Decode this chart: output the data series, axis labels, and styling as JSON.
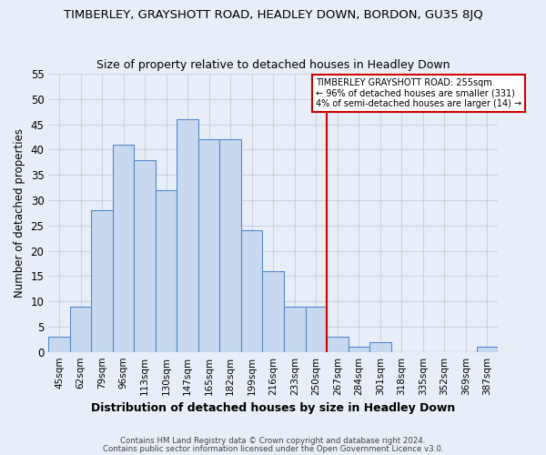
{
  "title1": "TIMBERLEY, GRAYSHOTT ROAD, HEADLEY DOWN, BORDON, GU35 8JQ",
  "title2": "Size of property relative to detached houses in Headley Down",
  "xlabel": "Distribution of detached houses by size in Headley Down",
  "ylabel": "Number of detached properties",
  "footer1": "Contains HM Land Registry data © Crown copyright and database right 2024.",
  "footer2": "Contains public sector information licensed under the Open Government Licence v3.0.",
  "bar_labels": [
    "45sqm",
    "62sqm",
    "79sqm",
    "96sqm",
    "113sqm",
    "130sqm",
    "147sqm",
    "165sqm",
    "182sqm",
    "199sqm",
    "216sqm",
    "233sqm",
    "250sqm",
    "267sqm",
    "284sqm",
    "301sqm",
    "318sqm",
    "335sqm",
    "352sqm",
    "369sqm",
    "387sqm"
  ],
  "bar_values": [
    3,
    9,
    28,
    41,
    38,
    32,
    46,
    42,
    42,
    24,
    16,
    9,
    9,
    3,
    1,
    2,
    0,
    0,
    0,
    0,
    1
  ],
  "bar_color": "#c8d8ee",
  "bar_edgecolor": "#5588cc",
  "grid_color": "#ccd4e0",
  "background_color": "#e8eef8",
  "vline_x": 12,
  "vline_color": "#cc0000",
  "annotation_line1": "TIMBERLEY GRAYSHOTT ROAD: 255sqm",
  "annotation_line2": "← 96% of detached houses are smaller (331)",
  "annotation_line3": "4% of semi-detached houses are larger (14) →",
  "annotation_box_edgecolor": "#cc0000",
  "ylim": [
    0,
    55
  ],
  "yticks": [
    0,
    5,
    10,
    15,
    20,
    25,
    30,
    35,
    40,
    45,
    50,
    55
  ]
}
